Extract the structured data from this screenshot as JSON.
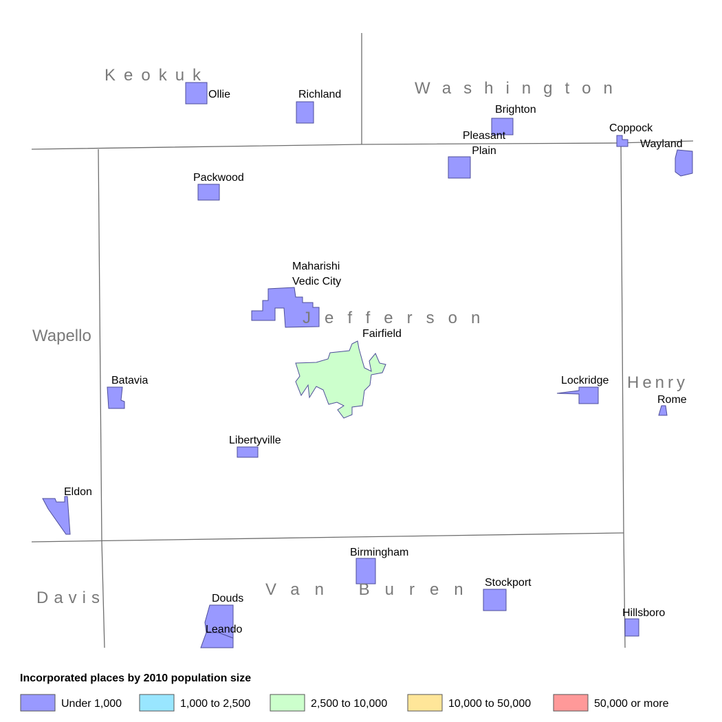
{
  "counties": [
    {
      "label": "Keokuk"
    },
    {
      "label": "Washington"
    },
    {
      "label": "Wapello"
    },
    {
      "label": "Jefferson"
    },
    {
      "label": "Henry"
    },
    {
      "label": "Davis"
    },
    {
      "label": "Van Buren"
    }
  ],
  "places": [
    {
      "label": [
        "Ollie"
      ],
      "color": "#9999ff"
    },
    {
      "label": [
        "Richland"
      ],
      "color": "#9999ff"
    },
    {
      "label": [
        "Brighton"
      ],
      "color": "#9999ff"
    },
    {
      "label": [
        "Coppock"
      ],
      "color": "#9999ff"
    },
    {
      "label": [
        "Wayland"
      ],
      "color": "#9999ff"
    },
    {
      "label": [
        "Pleasant",
        "Plain"
      ],
      "color": "#9999ff"
    },
    {
      "label": [
        "Packwood"
      ],
      "color": "#9999ff"
    },
    {
      "label": [
        "Maharishi",
        "Vedic City"
      ],
      "color": "#9999ff"
    },
    {
      "label": [
        "Fairfield"
      ],
      "color": "#ccffcc"
    },
    {
      "label": [
        "Batavia"
      ],
      "color": "#9999ff"
    },
    {
      "label": [
        "Lockridge"
      ],
      "color": "#9999ff"
    },
    {
      "label": [
        "Rome"
      ],
      "color": "#9999ff"
    },
    {
      "label": [
        "Libertyville"
      ],
      "color": "#9999ff"
    },
    {
      "label": [
        "Eldon"
      ],
      "color": "#9999ff"
    },
    {
      "label": [
        "Birmingham"
      ],
      "color": "#9999ff"
    },
    {
      "label": [
        "Stockport"
      ],
      "color": "#9999ff"
    },
    {
      "label": [
        "Douds"
      ],
      "color": "#9999ff"
    },
    {
      "label": [
        "Leando"
      ],
      "color": "#9999ff"
    },
    {
      "label": [
        "Hillsboro"
      ],
      "color": "#9999ff"
    }
  ],
  "legend": {
    "title": "Incorporated places by 2010 population size",
    "items": [
      {
        "label": "Under 1,000",
        "color": "#9999ff"
      },
      {
        "label": "1,000 to 2,500",
        "color": "#99e6ff"
      },
      {
        "label": "2,500 to 10,000",
        "color": "#ccffcc"
      },
      {
        "label": "10,000 to 50,000",
        "color": "#ffe699"
      },
      {
        "label": "50,000 or more",
        "color": "#ff9999"
      }
    ]
  }
}
